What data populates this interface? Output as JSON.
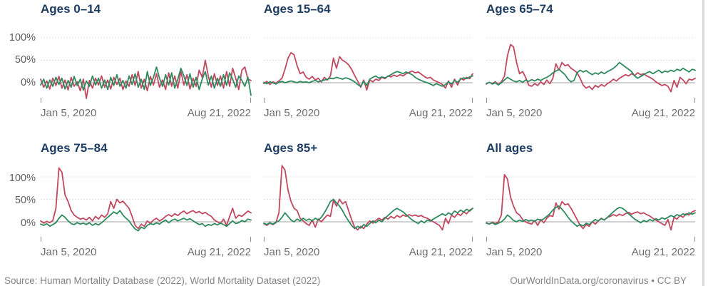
{
  "axis": {
    "y_ticks": [
      "100%",
      "50%",
      "0%"
    ],
    "x_start": "Jan 5, 2020",
    "x_end": "Aug 21, 2022"
  },
  "colors": {
    "title": "#1d3d63",
    "red_line": "#c0485f",
    "green_line": "#2f8a5f",
    "gridline": "#d4d4d4",
    "zero_line": "#a0a0a0"
  },
  "footer": {
    "source": "Source: Human Mortality Database (2022), World Mortality Dataset (2022)",
    "attribution": "OurWorldInData.org/coronavirus • CC BY"
  },
  "chart_data": [
    {
      "type": "line",
      "title": "Ages 0–14",
      "x_ticks": [
        "Jan 5, 2020",
        "Aug 21, 2022"
      ],
      "y_gridlines": [
        0,
        50,
        100
      ],
      "ylim": [
        -50,
        128
      ],
      "legend": "none",
      "series": [
        {
          "name": "red-line",
          "color": "#c0485f",
          "values": [
            8,
            -10,
            4,
            -14,
            10,
            -6,
            14,
            -12,
            6,
            -16,
            12,
            -8,
            2,
            -18,
            8,
            -35,
            5,
            -12,
            10,
            -5,
            15,
            -10,
            6,
            -14,
            12,
            -4,
            10,
            -15,
            4,
            -8,
            18,
            -6,
            25,
            -12,
            8,
            -18,
            14,
            -5,
            20,
            -10,
            6,
            -15,
            22,
            -8,
            15,
            -12,
            25,
            -5,
            18,
            -14,
            10,
            -8,
            28,
            12,
            50,
            15,
            -10,
            20,
            -6,
            15,
            -12,
            25,
            -8,
            32,
            10,
            -15,
            28,
            35,
            8,
            5
          ]
        },
        {
          "name": "green-line",
          "color": "#2f8a5f",
          "values": [
            -5,
            8,
            -12,
            6,
            -8,
            12,
            -4,
            10,
            -14,
            5,
            -10,
            14,
            -6,
            8,
            -16,
            4,
            -8,
            15,
            -5,
            10,
            -12,
            6,
            -15,
            12,
            -6,
            18,
            -8,
            5,
            -12,
            15,
            -4,
            20,
            -10,
            8,
            -15,
            25,
            -6,
            12,
            35,
            10,
            -8,
            18,
            -5,
            22,
            -12,
            8,
            32,
            15,
            -6,
            20,
            -10,
            12,
            -15,
            8,
            25,
            -5,
            15,
            -12,
            10,
            -8,
            18,
            -6,
            22,
            8,
            -10,
            15,
            5,
            -8,
            12,
            -28
          ]
        }
      ]
    },
    {
      "type": "line",
      "title": "Ages 15–64",
      "x_ticks": [
        "Jan 5, 2020",
        "Aug 21, 2022"
      ],
      "y_gridlines": [
        0,
        50,
        100
      ],
      "ylim": [
        -50,
        128
      ],
      "legend": "none",
      "series": [
        {
          "name": "red-line",
          "color": "#c0485f",
          "values": [
            -2,
            3,
            -4,
            2,
            -1,
            4,
            10,
            30,
            55,
            67,
            62,
            38,
            20,
            24,
            12,
            8,
            14,
            6,
            10,
            2,
            12,
            6,
            15,
            55,
            32,
            58,
            50,
            46,
            40,
            30,
            16,
            4,
            -10,
            6,
            -16,
            6,
            2,
            8,
            5,
            12,
            9,
            15,
            13,
            17,
            14,
            18,
            15,
            20,
            23,
            26,
            22,
            24,
            19,
            14,
            10,
            12,
            6,
            3,
            0,
            -4,
            -12,
            4,
            -10,
            8,
            -5,
            10,
            6,
            12,
            9,
            20
          ]
        },
        {
          "name": "green-line",
          "color": "#2f8a5f",
          "values": [
            1,
            -2,
            2,
            0,
            -3,
            1,
            3,
            0,
            2,
            4,
            2,
            0,
            3,
            1,
            2,
            0,
            3,
            5,
            2,
            4,
            6,
            8,
            10,
            9,
            12,
            10,
            8,
            11,
            9,
            6,
            2,
            -4,
            -8,
            3,
            -6,
            8,
            12,
            15,
            10,
            13,
            11,
            14,
            18,
            22,
            25,
            23,
            20,
            24,
            21,
            18,
            12,
            8,
            5,
            2,
            0,
            -3,
            -6,
            -2,
            -5,
            -8,
            -4,
            2,
            -3,
            5,
            1,
            8,
            11,
            9,
            13,
            15
          ]
        }
      ]
    },
    {
      "type": "line",
      "title": "Ages 65–74",
      "x_ticks": [
        "Jan 5, 2020",
        "Aug 21, 2022"
      ],
      "y_gridlines": [
        0,
        50,
        100
      ],
      "ylim": [
        -50,
        128
      ],
      "legend": "none",
      "series": [
        {
          "name": "red-line",
          "color": "#c0485f",
          "values": [
            -3,
            1,
            -2,
            2,
            -4,
            2,
            15,
            60,
            85,
            80,
            45,
            20,
            25,
            12,
            -5,
            -8,
            -2,
            -6,
            2,
            -4,
            6,
            -2,
            10,
            42,
            28,
            45,
            38,
            40,
            32,
            28,
            22,
            10,
            -5,
            -12,
            -8,
            -15,
            -6,
            -10,
            -4,
            -8,
            -2,
            2,
            8,
            4,
            10,
            14,
            18,
            15,
            20,
            16,
            22,
            18,
            20,
            15,
            12,
            8,
            2,
            -2,
            -6,
            -4,
            -8,
            -20,
            5,
            -10,
            12,
            6,
            -2,
            8,
            6,
            10
          ]
        },
        {
          "name": "green-line",
          "color": "#2f8a5f",
          "values": [
            -2,
            1,
            -3,
            0,
            -5,
            0,
            6,
            12,
            8,
            4,
            2,
            5,
            1,
            6,
            3,
            7,
            4,
            8,
            5,
            9,
            12,
            16,
            22,
            26,
            30,
            24,
            18,
            8,
            2,
            5,
            22,
            28,
            24,
            27,
            22,
            18,
            22,
            19,
            24,
            20,
            25,
            28,
            32,
            38,
            45,
            40,
            35,
            30,
            25,
            15,
            10,
            14,
            18,
            22,
            25,
            20,
            24,
            28,
            22,
            26,
            24,
            28,
            25,
            30,
            27,
            32,
            28,
            24,
            30,
            28
          ]
        }
      ]
    },
    {
      "type": "line",
      "title": "Ages 75–84",
      "x_ticks": [
        "Jan 5, 2020",
        "Aug 21, 2022"
      ],
      "y_gridlines": [
        0,
        50,
        100
      ],
      "ylim": [
        -50,
        128
      ],
      "legend": "none",
      "series": [
        {
          "name": "red-line",
          "color": "#c0485f",
          "values": [
            2,
            -3,
            1,
            -2,
            3,
            30,
            120,
            110,
            60,
            45,
            25,
            15,
            10,
            6,
            8,
            4,
            10,
            2,
            12,
            6,
            15,
            10,
            18,
            45,
            30,
            50,
            42,
            46,
            38,
            30,
            12,
            -8,
            -15,
            -5,
            -10,
            2,
            -4,
            4,
            8,
            2,
            6,
            12,
            16,
            12,
            18,
            14,
            20,
            24,
            18,
            22,
            25,
            20,
            23,
            18,
            21,
            16,
            12,
            4,
            0,
            -4,
            6,
            -8,
            12,
            30,
            8,
            15,
            12,
            18,
            24,
            20
          ]
        },
        {
          "name": "green-line",
          "color": "#2f8a5f",
          "values": [
            -5,
            -8,
            -4,
            -10,
            -6,
            -2,
            8,
            15,
            10,
            2,
            -4,
            -6,
            -2,
            -5,
            -3,
            -6,
            -2,
            -8,
            -4,
            -7,
            -2,
            4,
            10,
            16,
            22,
            18,
            25,
            15,
            8,
            2,
            -8,
            -16,
            -20,
            -12,
            -15,
            -8,
            -4,
            -6,
            -2,
            -5,
            0,
            4,
            -2,
            3,
            6,
            2,
            5,
            8,
            4,
            7,
            2,
            -2,
            -6,
            -4,
            -10,
            -6,
            -8,
            -4,
            -7,
            -3,
            -6,
            -10,
            -4,
            2,
            -4,
            -2,
            3,
            0,
            6,
            4
          ]
        }
      ]
    },
    {
      "type": "line",
      "title": "Ages 85+",
      "x_ticks": [
        "Jan 5, 2020",
        "Aug 21, 2022"
      ],
      "y_gridlines": [
        0,
        50,
        100
      ],
      "ylim": [
        -50,
        128
      ],
      "legend": "none",
      "series": [
        {
          "name": "red-line",
          "color": "#c0485f",
          "values": [
            -4,
            -8,
            -3,
            -6,
            -2,
            20,
            125,
            115,
            70,
            45,
            30,
            25,
            8,
            2,
            -4,
            -8,
            4,
            -12,
            6,
            0,
            8,
            15,
            12,
            48,
            35,
            50,
            40,
            45,
            25,
            5,
            -12,
            -18,
            -10,
            -15,
            -5,
            2,
            -3,
            3,
            8,
            4,
            10,
            6,
            12,
            8,
            14,
            10,
            15,
            12,
            16,
            13,
            15,
            12,
            14,
            10,
            8,
            4,
            0,
            -4,
            -8,
            -18,
            8,
            -4,
            15,
            10,
            18,
            14,
            22,
            18,
            26,
            30
          ]
        },
        {
          "name": "green-line",
          "color": "#2f8a5f",
          "values": [
            -3,
            -6,
            -2,
            -5,
            -1,
            2,
            10,
            20,
            12,
            4,
            0,
            6,
            2,
            8,
            3,
            6,
            2,
            8,
            4,
            10,
            20,
            32,
            45,
            50,
            42,
            35,
            25,
            12,
            2,
            -8,
            -15,
            -10,
            -14,
            -6,
            -10,
            -4,
            2,
            -2,
            4,
            0,
            8,
            14,
            20,
            26,
            30,
            26,
            22,
            16,
            10,
            4,
            0,
            -4,
            2,
            -2,
            4,
            2,
            6,
            10,
            14,
            18,
            14,
            20,
            16,
            24,
            20,
            26,
            22,
            28,
            24,
            30
          ]
        }
      ]
    },
    {
      "type": "line",
      "title": "All ages",
      "x_ticks": [
        "Jan 5, 2020",
        "Aug 21, 2022"
      ],
      "y_gridlines": [
        0,
        50,
        100
      ],
      "ylim": [
        -50,
        128
      ],
      "legend": "none",
      "series": [
        {
          "name": "red-line",
          "color": "#c0485f",
          "values": [
            -2,
            -5,
            -1,
            -4,
            0,
            15,
            105,
            95,
            55,
            35,
            20,
            15,
            5,
            0,
            -3,
            -5,
            3,
            -8,
            5,
            -2,
            8,
            14,
            12,
            42,
            28,
            45,
            38,
            40,
            30,
            18,
            5,
            -8,
            -15,
            -6,
            -10,
            0,
            -5,
            2,
            8,
            4,
            10,
            12,
            16,
            13,
            17,
            14,
            18,
            21,
            17,
            20,
            22,
            18,
            20,
            16,
            13,
            8,
            4,
            0,
            -4,
            -8,
            5,
            -18,
            10,
            6,
            14,
            10,
            18,
            15,
            22,
            25
          ]
        },
        {
          "name": "green-line",
          "color": "#2f8a5f",
          "values": [
            -3,
            -5,
            -2,
            -6,
            -3,
            0,
            6,
            15,
            10,
            3,
            0,
            4,
            1,
            5,
            2,
            4,
            1,
            6,
            3,
            7,
            12,
            18,
            26,
            32,
            35,
            28,
            20,
            10,
            2,
            -4,
            -10,
            -6,
            -9,
            -3,
            -6,
            0,
            5,
            2,
            7,
            4,
            10,
            16,
            22,
            28,
            32,
            30,
            25,
            18,
            12,
            6,
            2,
            -2,
            3,
            0,
            5,
            2,
            7,
            4,
            9,
            6,
            10,
            14,
            11,
            16,
            13,
            18,
            15,
            20,
            17,
            20
          ]
        }
      ]
    }
  ]
}
